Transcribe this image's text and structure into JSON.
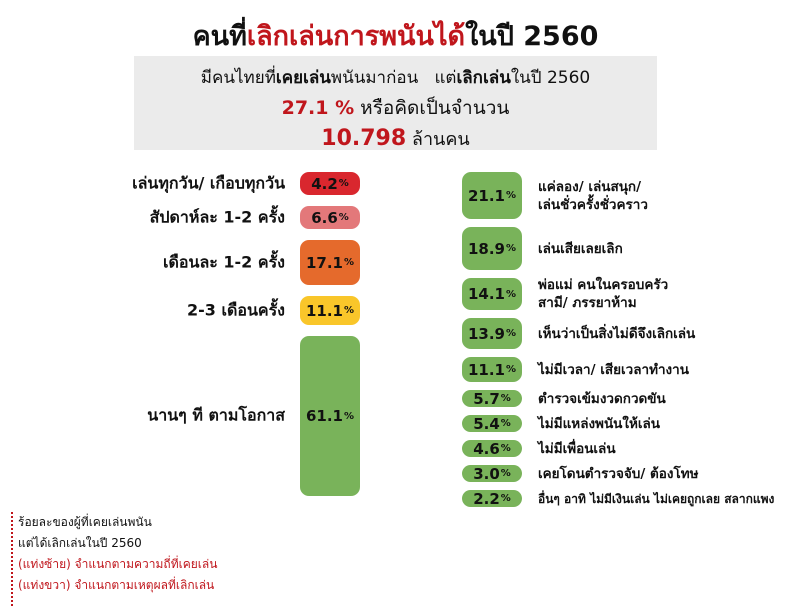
{
  "header": {
    "title_prefix": "คนที่",
    "title_highlight": "เลิกเล่นการพนันได้",
    "title_suffix": "ในปี 2560"
  },
  "summary": {
    "l1_a": "มีคนไทยที่",
    "l1_b": "เคยเล่น",
    "l1_c": "พนันมาก่อน   แต่",
    "l1_d": "เลิกเล่น",
    "l1_e": "ในปี 2560",
    "pct": "27.1 %",
    "pct_suffix": " หรือคิดเป็นจำนวน",
    "number": "10.798",
    "number_suffix": " ล้านคน"
  },
  "chart_data": [
    {
      "type": "bar",
      "name": "ความถี่ที่เคยเล่น",
      "categories": [
        "เล่นทุกวัน/ เกือบทุกวัน",
        "สัปดาห์ละ 1-2 ครั้ง",
        "เดือนละ 1-2 ครั้ง",
        "2-3 เดือนครั้ง",
        "นานๆ ที ตามโอกาส"
      ],
      "values": [
        4.2,
        6.6,
        17.1,
        11.1,
        61.1
      ],
      "value_labels": [
        "4.2",
        "6.6",
        "17.1",
        "11.1",
        "61.1"
      ],
      "colors": [
        "#d9272e",
        "#e3787a",
        "#e56a2c",
        "#f9c62a",
        "#79b35a"
      ],
      "unit": "%"
    },
    {
      "type": "bar",
      "name": "เหตุผลที่เลิกเล่น",
      "categories": [
        "แค่ลอง/ เล่นสนุก/ เล่นชั่วครั้งชั่วคราว",
        "เล่นเสียเลยเลิก",
        "พ่อแม่ คนในครอบครัว สามี/ ภรรยาห้าม",
        "เห็นว่าเป็นสิ่งไม่ดีจึงเลิกเล่น",
        "ไม่มีเวลา/ เสียเวลาทำงาน",
        "ตำรวจเข้มงวดกวดขัน",
        "ไม่มีแหล่งพนันให้เล่น",
        "ไม่มีเพื่อนเล่น",
        "เคยโดนตำรวจจับ/ ต้องโทษ",
        "อื่นๆ อาทิ ไม่มีเงินเล่น ไม่เคยถูกเลย สลากแพง"
      ],
      "values": [
        21.1,
        18.9,
        14.1,
        13.9,
        11.1,
        5.7,
        5.4,
        4.6,
        3.0,
        2.2
      ],
      "value_labels": [
        "21.1",
        "18.9",
        "14.1",
        "13.9",
        "11.1",
        "5.7",
        "5.4",
        "4.6",
        "3.0",
        "2.2"
      ],
      "colors": [
        "#79b35a"
      ],
      "unit": "%"
    }
  ],
  "notes": {
    "line1": "ร้อยละของผู้ที่เคยเล่นพนัน",
    "line2": "แต่ได้เลิกเล่นในปี 2560",
    "line3": "(แท่งซ้าย)  จำแนกตามความถี่ที่เคยเล่น",
    "line4": "(แท่งขวา)  จำแนกตามเหตุผลที่เลิกเล่น"
  }
}
